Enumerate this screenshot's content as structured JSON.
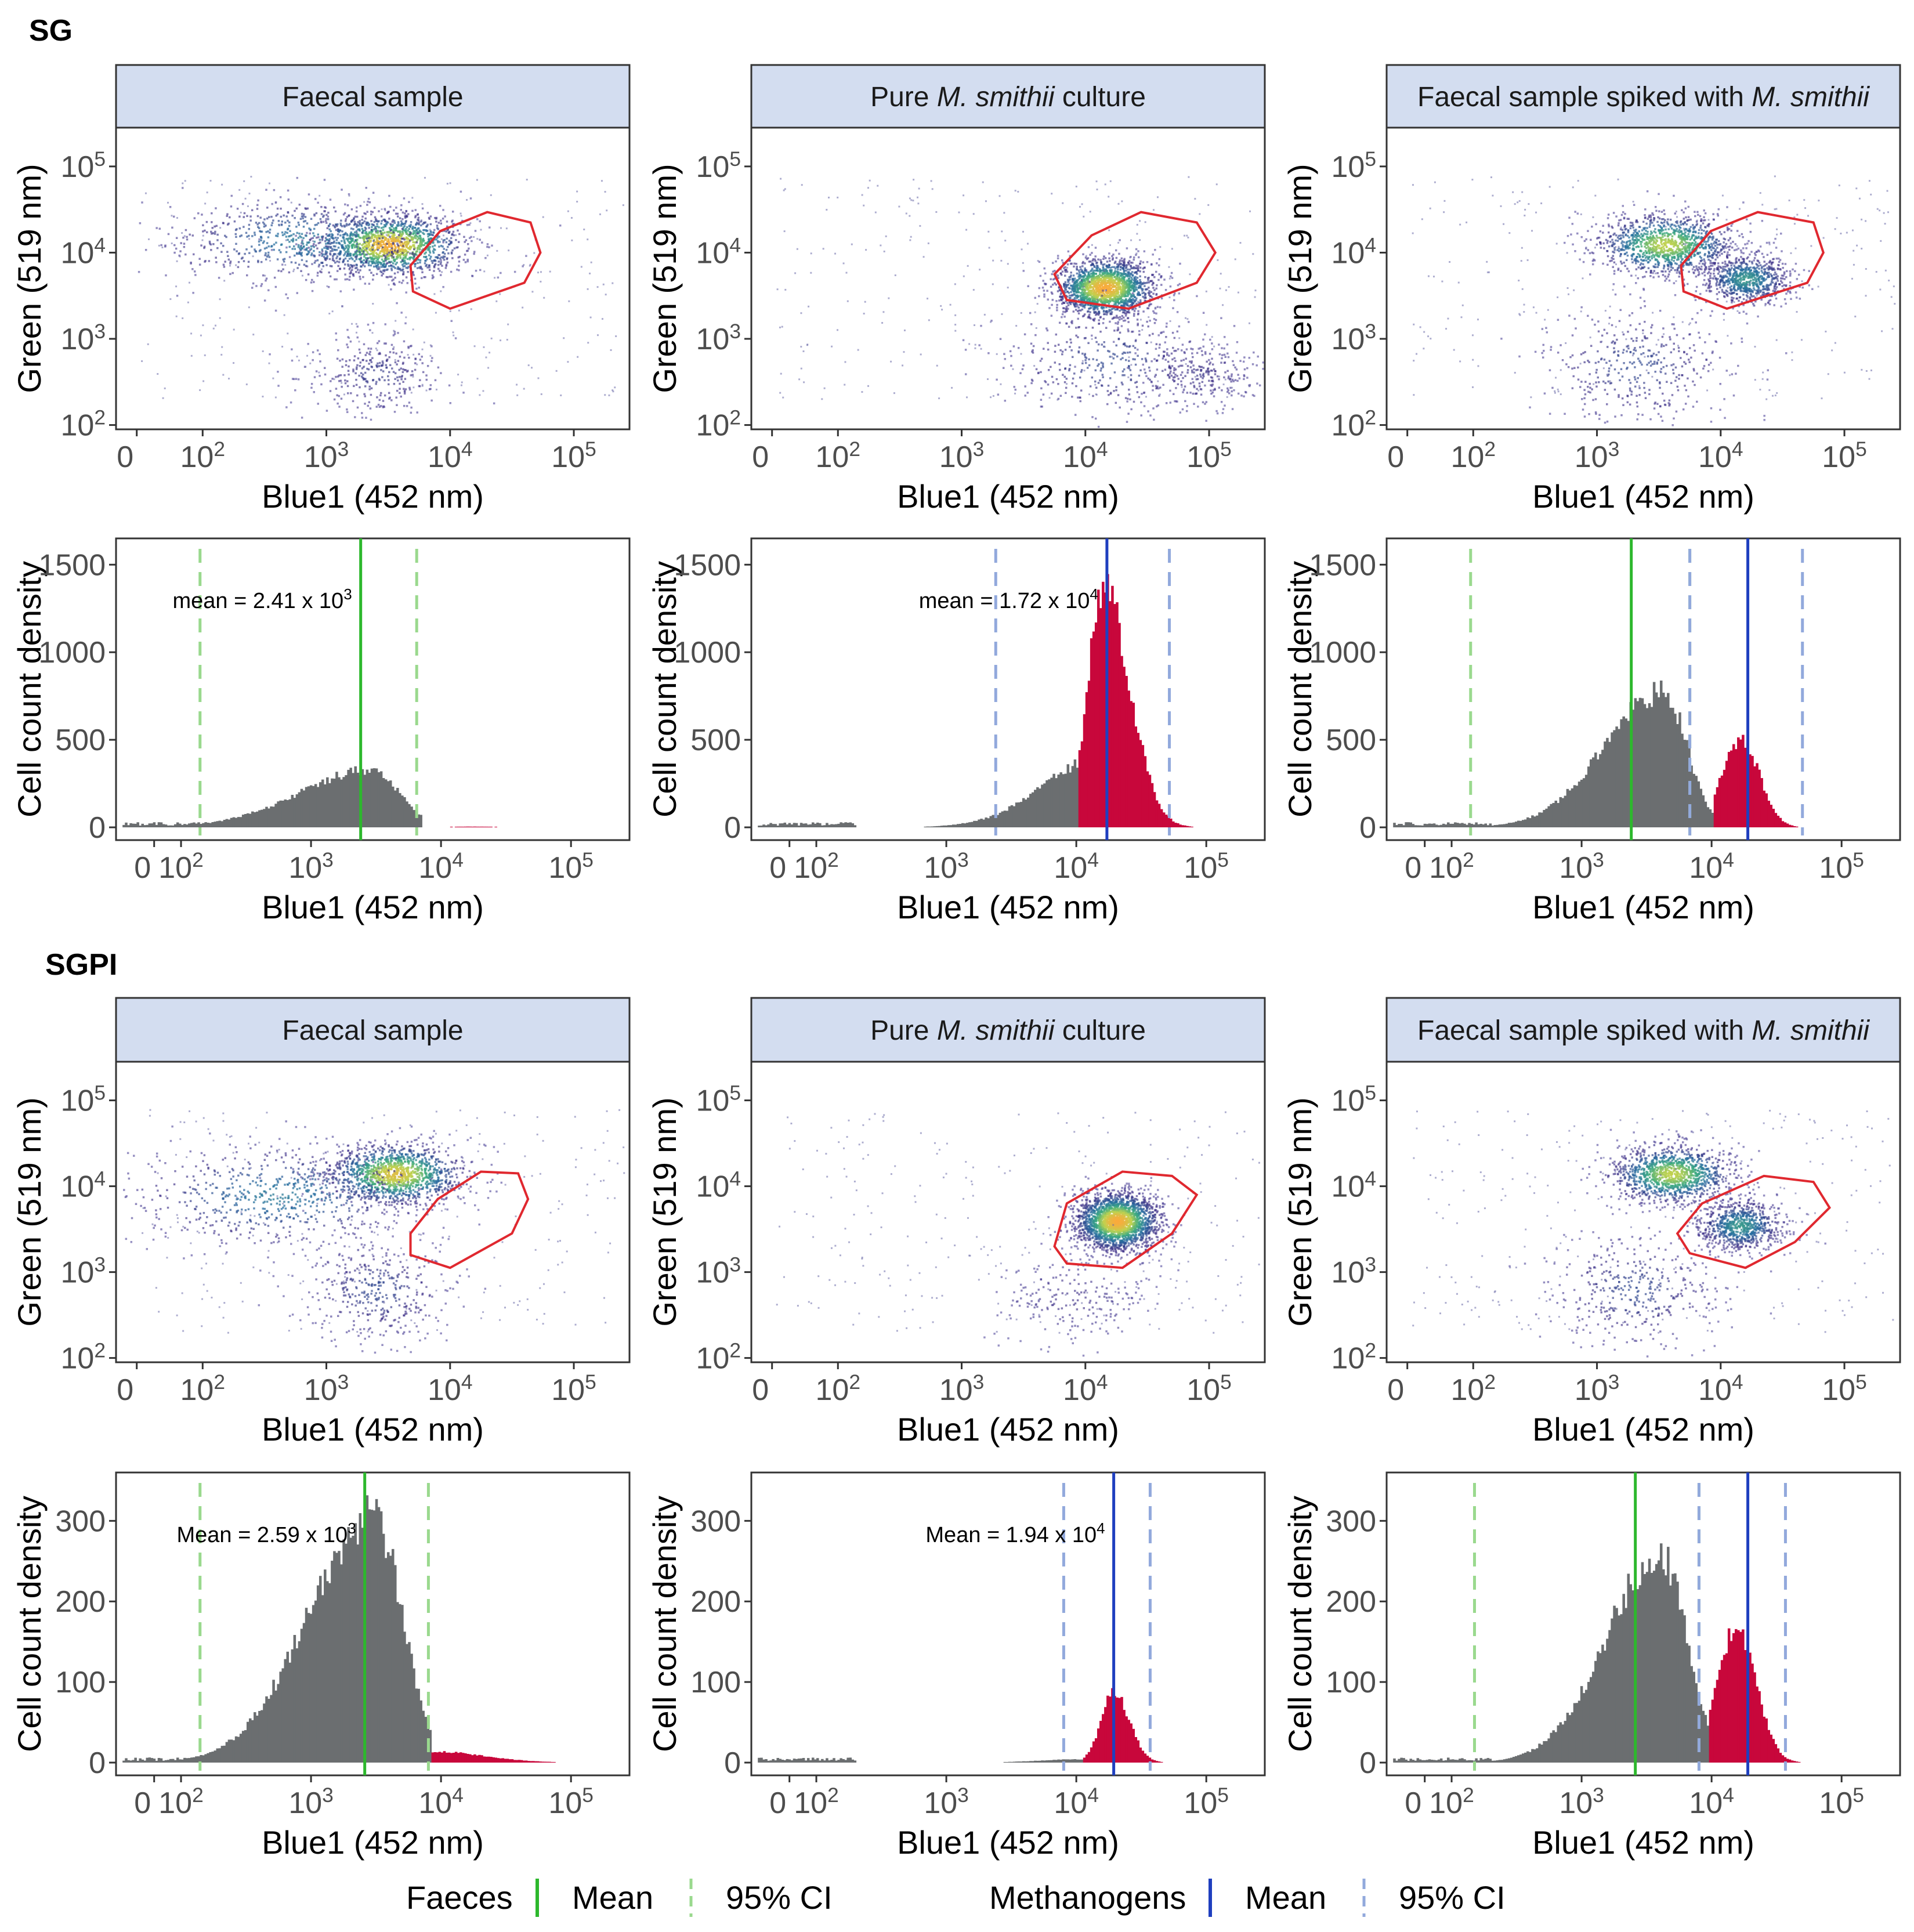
{
  "sections": [
    {
      "label": "SG"
    },
    {
      "label": "SGPI"
    }
  ],
  "columns": [
    {
      "title_parts": [
        {
          "text": "Faecal sample",
          "italic": false
        }
      ]
    },
    {
      "title_parts": [
        {
          "text": "Pure ",
          "italic": false
        },
        {
          "text": "M. smithii",
          "italic": true
        },
        {
          "text": " culture",
          "italic": false
        }
      ]
    },
    {
      "title_parts": [
        {
          "text": "Faecal sample spiked with ",
          "italic": false
        },
        {
          "text": "M. smithii",
          "italic": true
        }
      ]
    }
  ],
  "colors": {
    "strip_fill": "#d3ddf0",
    "faeces": "#2db82d",
    "faeces_ci": "#9ad98e",
    "methanogens": "#1f3fbf",
    "methanogens_ci": "#92a9dc",
    "faeces_hist": "#6b6e70",
    "methanogen_hist": "#c8073b",
    "gate": "#e0282f"
  },
  "chart_data": [
    {
      "type": "scatter",
      "section": "SG",
      "panel": "Faecal sample",
      "xlabel": "Blue1 (452 nm)",
      "ylabel": "Green (519 nm)",
      "x_ticks": [
        "0",
        "10^2",
        "10^3",
        "10^4",
        "10^5"
      ],
      "y_ticks": [
        "10^2",
        "10^3",
        "10^4",
        "10^5"
      ],
      "xlim_log10": [
        1.3,
        5.45
      ],
      "ylim_log10": [
        1.95,
        5.45
      ],
      "point_clusters": [
        {
          "x_log10": 3.5,
          "y_log10": 4.1,
          "sx": 0.3,
          "sy": 0.18,
          "weight": 0.55
        },
        {
          "x_log10": 2.8,
          "y_log10": 4.15,
          "sx": 0.55,
          "sy": 0.25,
          "weight": 0.25
        },
        {
          "x_log10": 3.4,
          "y_log10": 2.6,
          "sx": 0.3,
          "sy": 0.25,
          "weight": 0.12
        }
      ],
      "gate_polygon_log10": [
        [
          4.3,
          4.47
        ],
        [
          4.65,
          4.35
        ],
        [
          4.73,
          4.0
        ],
        [
          4.6,
          3.65
        ],
        [
          4.0,
          3.35
        ],
        [
          3.7,
          3.55
        ],
        [
          3.68,
          3.85
        ],
        [
          3.92,
          4.25
        ]
      ]
    },
    {
      "type": "scatter",
      "section": "SG",
      "panel": "Pure M. smithii culture",
      "xlabel": "Blue1 (452 nm)",
      "ylabel": "Green (519 nm)",
      "x_ticks": [
        "0",
        "10^2",
        "10^3",
        "10^4",
        "10^5"
      ],
      "y_ticks": [
        "10^2",
        "10^3",
        "10^4",
        "10^5"
      ],
      "xlim_log10": [
        1.3,
        5.45
      ],
      "ylim_log10": [
        1.95,
        5.45
      ],
      "point_clusters": [
        {
          "x_log10": 4.15,
          "y_log10": 3.6,
          "sx": 0.2,
          "sy": 0.17,
          "weight": 0.7
        },
        {
          "x_log10": 4.2,
          "y_log10": 2.75,
          "sx": 0.45,
          "sy": 0.35,
          "weight": 0.15
        },
        {
          "x_log10": 4.9,
          "y_log10": 2.6,
          "sx": 0.25,
          "sy": 0.2,
          "weight": 0.1
        }
      ],
      "gate_polygon_log10": [
        [
          4.45,
          4.47
        ],
        [
          4.9,
          4.35
        ],
        [
          5.05,
          4.0
        ],
        [
          4.9,
          3.65
        ],
        [
          4.35,
          3.35
        ],
        [
          3.85,
          3.45
        ],
        [
          3.75,
          3.75
        ],
        [
          4.05,
          4.2
        ]
      ]
    },
    {
      "type": "scatter",
      "section": "SG",
      "panel": "Faecal sample spiked with M. smithii",
      "xlabel": "Blue1 (452 nm)",
      "ylabel": "Green (519 nm)",
      "x_ticks": [
        "0",
        "10^2",
        "10^3",
        "10^4",
        "10^5"
      ],
      "y_ticks": [
        "10^2",
        "10^3",
        "10^4",
        "10^5"
      ],
      "xlim_log10": [
        1.3,
        5.45
      ],
      "ylim_log10": [
        1.95,
        5.45
      ],
      "point_clusters": [
        {
          "x_log10": 3.55,
          "y_log10": 4.1,
          "sx": 0.28,
          "sy": 0.18,
          "weight": 0.45
        },
        {
          "x_log10": 4.2,
          "y_log10": 3.7,
          "sx": 0.18,
          "sy": 0.15,
          "weight": 0.3
        },
        {
          "x_log10": 3.3,
          "y_log10": 2.7,
          "sx": 0.4,
          "sy": 0.35,
          "weight": 0.15
        }
      ],
      "gate_polygon_log10": [
        [
          4.3,
          4.47
        ],
        [
          4.75,
          4.35
        ],
        [
          4.83,
          4.0
        ],
        [
          4.7,
          3.65
        ],
        [
          4.05,
          3.35
        ],
        [
          3.7,
          3.55
        ],
        [
          3.68,
          3.85
        ],
        [
          3.92,
          4.25
        ]
      ]
    },
    {
      "type": "histogram",
      "section": "SG",
      "panel": "Faecal sample",
      "xlabel": "Blue1 (452 nm)",
      "ylabel": "Cell count density",
      "x_ticks": [
        "0",
        "10^2",
        "10^3",
        "10^4",
        "10^5"
      ],
      "y_ticks": [
        0,
        500,
        1000,
        1500
      ],
      "ylim": [
        0,
        1650
      ],
      "xlim_log10": [
        1.5,
        5.45
      ],
      "faeces_hist": {
        "center_log10": 3.45,
        "sd_left": 0.55,
        "sd_right": 0.22,
        "peak": 330,
        "cut_log10": 3.85
      },
      "methanogen_hist": {
        "center_log10": 4.2,
        "sd_left": 0.2,
        "sd_right": 0.3,
        "peak": 4,
        "from_log10": 3.85
      },
      "mean_lines": [
        {
          "group": "faeces",
          "x": 2410
        }
      ],
      "ci_lines": [
        {
          "group": "faeces",
          "x": [
            140,
            6500
          ]
        }
      ],
      "annotation": {
        "text": "mean = 2.41 x 10",
        "sup": "3"
      }
    },
    {
      "type": "histogram",
      "section": "SG",
      "panel": "Pure M. smithii culture",
      "xlabel": "Blue1 (452 nm)",
      "ylabel": "Cell count density",
      "x_ticks": [
        "0",
        "10^2",
        "10^3",
        "10^4",
        "10^5"
      ],
      "y_ticks": [
        0,
        500,
        1000,
        1500
      ],
      "ylim": [
        0,
        1650
      ],
      "xlim_log10": [
        1.5,
        5.45
      ],
      "faeces_hist": {
        "center_log10": 4.2,
        "sd_left": 0.45,
        "sd_right": 0.3,
        "peak": 400,
        "cut_log10": 4.0
      },
      "methanogen_hist": {
        "center_log10": 4.2,
        "sd_left": 0.12,
        "sd_right": 0.2,
        "peak": 1340,
        "from_log10": 4.0
      },
      "mean_lines": [
        {
          "group": "methanogens",
          "x": 17200
        }
      ],
      "ci_lines": [
        {
          "group": "methanogens",
          "x": [
            2400,
            52000
          ]
        }
      ],
      "annotation": {
        "text": "mean = 1.72 x 10",
        "sup": "4"
      }
    },
    {
      "type": "histogram",
      "section": "SG",
      "panel": "Faecal sample spiked with M. smithii",
      "xlabel": "Blue1 (452 nm)",
      "ylabel": "Cell count density",
      "x_ticks": [
        "0",
        "10^2",
        "10^3",
        "10^4",
        "10^5"
      ],
      "y_ticks": [
        0,
        500,
        1000,
        1500
      ],
      "ylim": [
        0,
        1650
      ],
      "xlim_log10": [
        1.5,
        5.45
      ],
      "faeces_hist": {
        "center_log10": 3.62,
        "sd_left": 0.45,
        "sd_right": 0.18,
        "peak": 770,
        "cut_log10": 4.0
      },
      "methanogen_hist": {
        "center_log10": 4.22,
        "sd_left": 0.15,
        "sd_right": 0.14,
        "peak": 500,
        "from_log10": 4.0
      },
      "mean_lines": [
        {
          "group": "faeces",
          "x": 2410
        },
        {
          "group": "methanogens",
          "x": 19000
        }
      ],
      "ci_lines": [
        {
          "group": "faeces",
          "x": [
            140,
            6800
          ]
        },
        {
          "group": "methanogens",
          "x": [
            6800,
            50000
          ]
        }
      ],
      "annotation": null
    },
    {
      "type": "scatter",
      "section": "SGPI",
      "panel": "Faecal sample",
      "xlabel": "Blue1 (452 nm)",
      "ylabel": "Green (519 nm)",
      "x_ticks": [
        "0",
        "10^2",
        "10^3",
        "10^4",
        "10^5"
      ],
      "y_ticks": [
        "10^2",
        "10^3",
        "10^4",
        "10^5"
      ],
      "xlim_log10": [
        1.3,
        5.45
      ],
      "ylim_log10": [
        1.95,
        5.45
      ],
      "point_clusters": [
        {
          "x_log10": 3.55,
          "y_log10": 4.15,
          "sx": 0.28,
          "sy": 0.18,
          "weight": 0.5
        },
        {
          "x_log10": 2.6,
          "y_log10": 3.9,
          "sx": 0.6,
          "sy": 0.3,
          "weight": 0.25
        },
        {
          "x_log10": 3.4,
          "y_log10": 2.8,
          "sx": 0.3,
          "sy": 0.3,
          "weight": 0.15
        }
      ],
      "gate_polygon_log10": [
        [
          4.25,
          4.17
        ],
        [
          4.55,
          4.15
        ],
        [
          4.63,
          3.85
        ],
        [
          4.5,
          3.45
        ],
        [
          4.0,
          3.05
        ],
        [
          3.68,
          3.2
        ],
        [
          3.68,
          3.45
        ],
        [
          3.9,
          3.85
        ]
      ]
    },
    {
      "type": "scatter",
      "section": "SGPI",
      "panel": "Pure M. smithii culture",
      "xlabel": "Blue1 (452 nm)",
      "ylabel": "Green (519 nm)",
      "x_ticks": [
        "0",
        "10^2",
        "10^3",
        "10^4",
        "10^5"
      ],
      "y_ticks": [
        "10^2",
        "10^3",
        "10^4",
        "10^5"
      ],
      "xlim_log10": [
        1.3,
        5.45
      ],
      "ylim_log10": [
        1.95,
        5.45
      ],
      "point_clusters": [
        {
          "x_log10": 4.25,
          "y_log10": 3.6,
          "sx": 0.17,
          "sy": 0.17,
          "weight": 0.8
        },
        {
          "x_log10": 3.9,
          "y_log10": 2.7,
          "sx": 0.3,
          "sy": 0.25,
          "weight": 0.08
        }
      ],
      "gate_polygon_log10": [
        [
          4.3,
          4.17
        ],
        [
          4.7,
          4.12
        ],
        [
          4.9,
          3.9
        ],
        [
          4.7,
          3.45
        ],
        [
          4.3,
          3.05
        ],
        [
          3.85,
          3.1
        ],
        [
          3.75,
          3.3
        ],
        [
          3.85,
          3.8
        ]
      ]
    },
    {
      "type": "scatter",
      "section": "SGPI",
      "panel": "Faecal sample spiked with M. smithii",
      "xlabel": "Blue1 (452 nm)",
      "ylabel": "Green (519 nm)",
      "x_ticks": [
        "0",
        "10^2",
        "10^3",
        "10^4",
        "10^5"
      ],
      "y_ticks": [
        "10^2",
        "10^3",
        "10^4",
        "10^5"
      ],
      "xlim_log10": [
        1.3,
        5.45
      ],
      "ylim_log10": [
        1.95,
        5.45
      ],
      "point_clusters": [
        {
          "x_log10": 3.6,
          "y_log10": 4.15,
          "sx": 0.25,
          "sy": 0.17,
          "weight": 0.45
        },
        {
          "x_log10": 4.15,
          "y_log10": 3.55,
          "sx": 0.18,
          "sy": 0.15,
          "weight": 0.3
        },
        {
          "x_log10": 3.3,
          "y_log10": 2.8,
          "sx": 0.35,
          "sy": 0.35,
          "weight": 0.15
        }
      ],
      "gate_polygon_log10": [
        [
          4.35,
          4.12
        ],
        [
          4.75,
          4.05
        ],
        [
          4.88,
          3.75
        ],
        [
          4.6,
          3.35
        ],
        [
          4.2,
          3.05
        ],
        [
          3.75,
          3.22
        ],
        [
          3.65,
          3.45
        ],
        [
          3.85,
          3.8
        ]
      ]
    },
    {
      "type": "histogram",
      "section": "SGPI",
      "panel": "Faecal sample",
      "xlabel": "Blue1 (452 nm)",
      "ylabel": "Cell count density",
      "x_ticks": [
        "0",
        "10^2",
        "10^3",
        "10^4",
        "10^5"
      ],
      "y_ticks": [
        0,
        100,
        200,
        300
      ],
      "ylim": [
        0,
        360
      ],
      "xlim_log10": [
        1.5,
        5.45
      ],
      "faeces_hist": {
        "center_log10": 3.47,
        "sd_left": 0.5,
        "sd_right": 0.22,
        "peak": 305,
        "cut_log10": 3.92
      },
      "methanogen_hist": {
        "center_log10": 3.9,
        "sd_left": 0.15,
        "sd_right": 0.4,
        "peak": 14,
        "from_log10": 3.92
      },
      "mean_lines": [
        {
          "group": "faeces",
          "x": 2590
        }
      ],
      "ci_lines": [
        {
          "group": "faeces",
          "x": [
            140,
            8000
          ]
        }
      ],
      "annotation": {
        "text": "Mean = 2.59 x 10",
        "sup": "3"
      }
    },
    {
      "type": "histogram",
      "section": "SGPI",
      "panel": "Pure M. smithii culture",
      "xlabel": "Blue1 (452 nm)",
      "ylabel": "Cell count density",
      "x_ticks": [
        "0",
        "10^2",
        "10^3",
        "10^4",
        "10^5"
      ],
      "y_ticks": [
        0,
        100,
        200,
        300
      ],
      "ylim": [
        0,
        360
      ],
      "xlim_log10": [
        1.5,
        5.45
      ],
      "faeces_hist": {
        "center_log10": 4.0,
        "sd_left": 0.3,
        "sd_right": 0.2,
        "peak": 4,
        "cut_log10": 4.05
      },
      "methanogen_hist": {
        "center_log10": 4.28,
        "sd_left": 0.1,
        "sd_right": 0.12,
        "peak": 85,
        "from_log10": 4.05
      },
      "mean_lines": [
        {
          "group": "methanogens",
          "x": 19400
        }
      ],
      "ci_lines": [
        {
          "group": "methanogens",
          "x": [
            8000,
            37000
          ]
        }
      ],
      "annotation": {
        "text": "Mean = 1.94 x 10",
        "sup": "4"
      }
    },
    {
      "type": "histogram",
      "section": "SGPI",
      "panel": "Faecal sample spiked with M. smithii",
      "xlabel": "Blue1 (452 nm)",
      "ylabel": "Cell count density",
      "x_ticks": [
        "0",
        "10^2",
        "10^3",
        "10^4",
        "10^5"
      ],
      "y_ticks": [
        0,
        100,
        200,
        300
      ],
      "ylim": [
        0,
        360
      ],
      "xlim_log10": [
        1.5,
        5.45
      ],
      "faeces_hist": {
        "center_log10": 3.6,
        "sd_left": 0.42,
        "sd_right": 0.2,
        "peak": 255,
        "cut_log10": 3.97
      },
      "methanogen_hist": {
        "center_log10": 4.18,
        "sd_left": 0.15,
        "sd_right": 0.15,
        "peak": 165,
        "from_log10": 3.97
      },
      "mean_lines": [
        {
          "group": "faeces",
          "x": 2590
        },
        {
          "group": "methanogens",
          "x": 19000
        }
      ],
      "ci_lines": [
        {
          "group": "faeces",
          "x": [
            150,
            8000
          ]
        },
        {
          "group": "methanogens",
          "x": [
            8000,
            37000
          ]
        }
      ],
      "annotation": null
    }
  ],
  "legend": {
    "groups": [
      {
        "title": "Faeces",
        "mean_label": "Mean",
        "ci_label": "95% CI",
        "color_key": "faeces",
        "ci_color_key": "faeces_ci"
      },
      {
        "title": "Methanogens",
        "mean_label": "Mean",
        "ci_label": "95% CI",
        "color_key": "methanogens",
        "ci_color_key": "methanogens_ci"
      }
    ]
  }
}
